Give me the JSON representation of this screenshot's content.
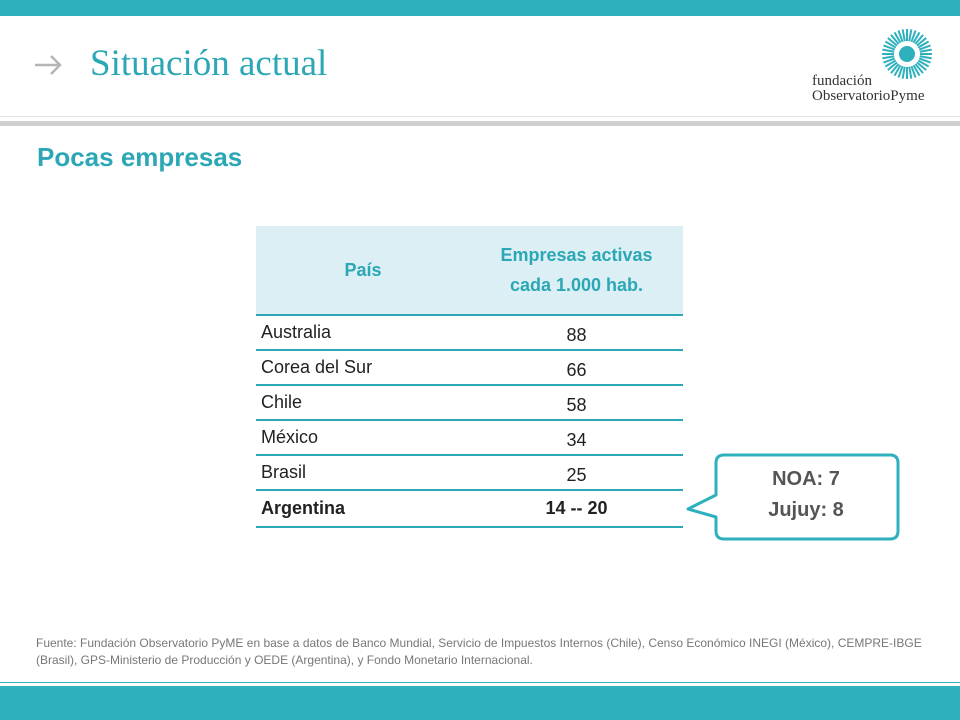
{
  "header": {
    "title": "Situación actual",
    "logo": {
      "line1": "fundación",
      "line2": "ObservatorioPyme",
      "accent_color": "#2eb0bd"
    }
  },
  "subtitle": "Pocas empresas",
  "table": {
    "columns": [
      "País",
      "Empresas activas cada 1.000 hab."
    ],
    "col2_line1": "Empresas activas",
    "col2_line2": "cada 1.000 hab.",
    "rows": [
      {
        "country": "Australia",
        "value": "88"
      },
      {
        "country": "Corea del Sur",
        "value": "66"
      },
      {
        "country": "Chile",
        "value": "58"
      },
      {
        "country": "México",
        "value": "34"
      },
      {
        "country": "Brasil",
        "value": "25"
      },
      {
        "country": "Argentina",
        "value": "14 -- 20"
      }
    ]
  },
  "callout": {
    "line1": "NOA: 7",
    "line2": "Jujuy: 8"
  },
  "source": "Fuente: Fundación Observatorio PyME en base a datos de Banco Mundial, Servicio de Impuestos Internos (Chile), Censo Económico INEGI (México), CEMPRE-IBGE (Brasil), GPS-Ministerio de Producción y OEDE (Argentina), y Fondo Monetario Internacional.",
  "colors": {
    "accent": "#2ba7b5",
    "header_fill": "#dbeff4"
  }
}
